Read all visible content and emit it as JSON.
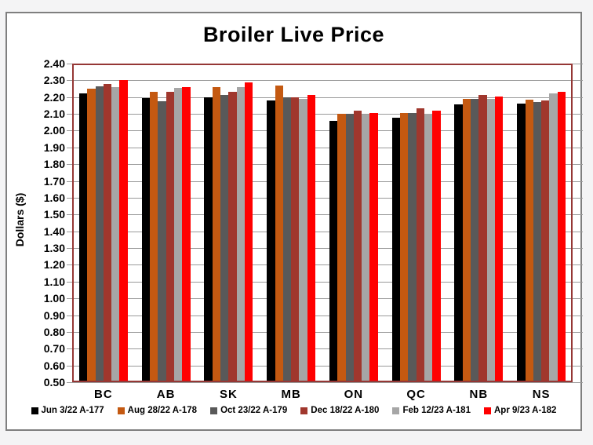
{
  "chart_data": {
    "type": "bar",
    "title": "Broiler Live Price",
    "xlabel": "",
    "ylabel": "Dollars ($)",
    "ylim": [
      0.5,
      2.4
    ],
    "ytick_step": 0.1,
    "grid": true,
    "legend_position": "bottom",
    "plot_border_color": "#953735",
    "gridline_color": "#9a9a9a",
    "categories": [
      "BC",
      "AB",
      "SK",
      "MB",
      "ON",
      "QC",
      "NB",
      "NS"
    ],
    "series": [
      {
        "name": "Jun 3/22 A-177",
        "color": "#000000",
        "values": [
          2.22,
          2.195,
          2.2,
          2.18,
          2.06,
          2.075,
          2.155,
          2.16
        ]
      },
      {
        "name": "Aug 28/22 A-178",
        "color": "#C45911",
        "values": [
          2.25,
          2.23,
          2.26,
          2.27,
          2.1,
          2.105,
          2.19,
          2.185
        ]
      },
      {
        "name": "Oct 23/22 A-179",
        "color": "#595959",
        "values": [
          2.265,
          2.175,
          2.215,
          2.2,
          2.1,
          2.105,
          2.19,
          2.17
        ]
      },
      {
        "name": "Dec 18/22 A-180",
        "color": "#A0372D",
        "values": [
          2.28,
          2.23,
          2.23,
          2.2,
          2.12,
          2.135,
          2.215,
          2.18
        ]
      },
      {
        "name": "Feb 12/23 A-181",
        "color": "#A6A6A6",
        "values": [
          2.26,
          2.255,
          2.26,
          2.19,
          2.095,
          2.1,
          2.19,
          2.22
        ]
      },
      {
        "name": "Apr 9/23 A-182",
        "color": "#FF0000",
        "values": [
          2.3,
          2.26,
          2.29,
          2.215,
          2.105,
          2.12,
          2.205,
          2.23
        ]
      }
    ]
  }
}
